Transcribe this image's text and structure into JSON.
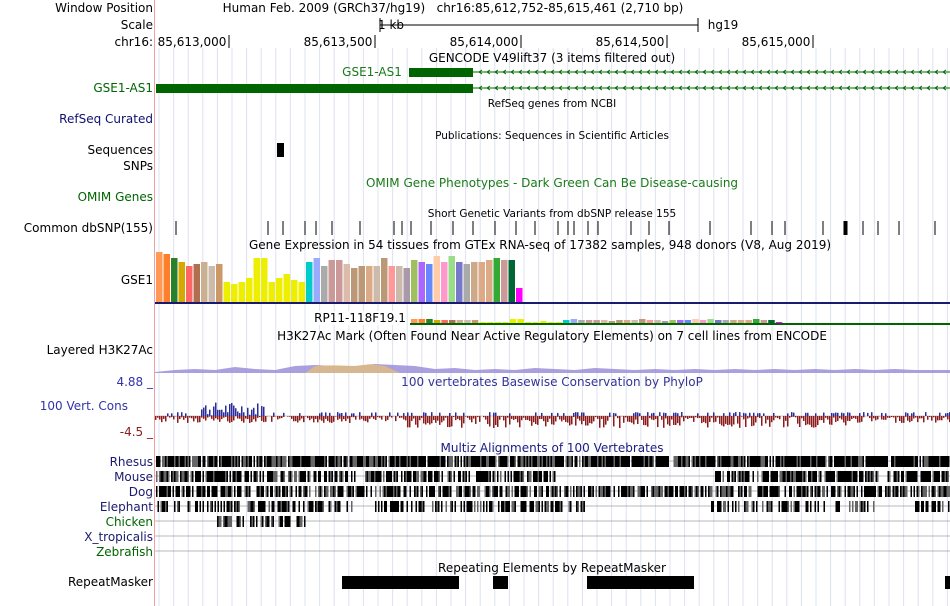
{
  "header": {
    "window_position_label": "Window Position",
    "assembly_text": "Human Feb. 2009 (GRCh37/hg19)",
    "position_text": "chr16:85,612,752-85,615,461 (2,710 bp)",
    "scale_label": "Scale",
    "scale_bar_text": "1 kb",
    "scale_db_text": "hg19",
    "chrom_label": "chr16:",
    "ruler_ticks": [
      "85,613,000",
      "85,613,500",
      "85,614,000",
      "85,614,500",
      "85,615,000"
    ]
  },
  "tracks": {
    "gencode": {
      "title": "GENCODE V49lift37 (3 items filtered out)",
      "left_label": "GSE1-AS1",
      "gene_name": "GSE1-AS1",
      "color": "#006400"
    },
    "refseq": {
      "title": "RefSeq genes from NCBI",
      "left_label": "RefSeq Curated",
      "color": "#101070"
    },
    "publications": {
      "title": "Publications: Sequences in Scientific Articles",
      "left_label_1": "Sequences",
      "left_label_2": "SNPs"
    },
    "omim": {
      "title": "OMIM Gene Phenotypes - Dark Green Can Be Disease-causing",
      "left_label": "OMIM Genes",
      "color": "#006400"
    },
    "dbsnp": {
      "title": "Short Genetic Variants from dbSNP release 155",
      "left_label": "Common dbSNP(155)"
    },
    "gtex": {
      "title": "Gene Expression in 54 tissues from GTEx RNA-seq of 17382 samples, 948 donors (V8, Aug 2019)",
      "left_label": "GSE1",
      "second_gene": "RP11-118F19.1"
    },
    "h3k27ac": {
      "title": "H3K27Ac Mark (Often Found Near Active Regulatory Elements) on 7 cell lines from ENCODE",
      "left_label": "Layered H3K27Ac"
    },
    "conservation": {
      "title": "100 vertebrates Basewise Conservation by PhyloP",
      "left_label": "100 Vert. Cons",
      "max_label": "4.88 _",
      "min_label": "-4.5 _",
      "pos_color": "#2b2b9c",
      "neg_color": "#8b1a1a"
    },
    "multiz": {
      "title": "Multiz Alignments of 100 Vertebrates",
      "species": [
        "Rhesus",
        "Mouse",
        "Dog",
        "Elephant",
        "Chicken",
        "X_tropicalis",
        "Zebrafish"
      ]
    },
    "repeatmasker": {
      "title": "Repeating Elements by RepeatMasker",
      "left_label": "RepeatMasker"
    }
  },
  "gtex_colors": [
    "#ff9955",
    "#ff7f2a",
    "#2a7f2a",
    "#d4aa00",
    "#ff6666",
    "#b07050",
    "#c8b090",
    "#ccbbaa",
    "#cc9966",
    "#eeee00",
    "#eeee00",
    "#eeee00",
    "#eeee00",
    "#eeee00",
    "#eeee00",
    "#eeee00",
    "#eeee00",
    "#eeee00",
    "#eeee00",
    "#eeee00",
    "#00cccc",
    "#99aaff",
    "#aaaaaa",
    "#cc9999",
    "#cc9999",
    "#ddbbaa",
    "#bb9977",
    "#bb9977",
    "#ddaa88",
    "#ccbbaa",
    "#bb9977",
    "#ff9999",
    "#ccbbaa",
    "#aa99aa",
    "#a0c060",
    "#aa66ff",
    "#6688ff",
    "#ffccaa",
    "#ff99cc",
    "#99dd88",
    "#7777cc",
    "#aaaaaa",
    "#ccaa88",
    "#ddaa88",
    "#ddaa88",
    "#33aa33",
    "#cc9999",
    "#006633",
    "#ff00ff"
  ],
  "gtex_values": [
    50,
    48,
    44,
    40,
    36,
    38,
    40,
    36,
    38,
    20,
    18,
    20,
    24,
    44,
    44,
    20,
    24,
    28,
    22,
    20,
    40,
    44,
    36,
    42,
    42,
    38,
    34,
    36,
    36,
    36,
    44,
    36,
    36,
    34,
    42,
    40,
    38,
    46,
    40,
    46,
    40,
    38,
    40,
    40,
    42,
    44,
    42,
    42,
    14
  ]
}
